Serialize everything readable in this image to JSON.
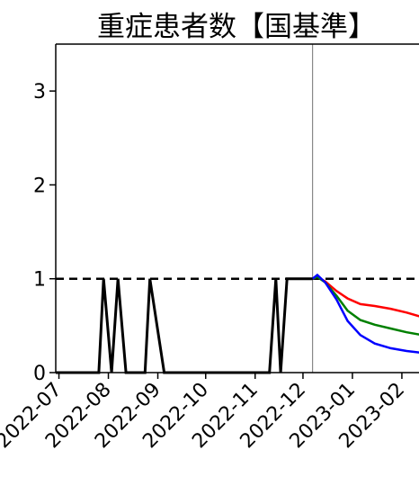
{
  "chart_data": {
    "type": "line",
    "title": "重症患者数【国基準】",
    "xlabel": "",
    "ylabel": "",
    "ylim": [
      0,
      3.5
    ],
    "yticks": [
      0,
      1,
      2,
      3
    ],
    "xlim": [
      "2022-06-29",
      "2023-02-14"
    ],
    "xtick_labels": [
      "2022-07",
      "2022-08",
      "2022-09",
      "2022-10",
      "2022-11",
      "2022-12",
      "2023-01",
      "2023-02"
    ],
    "xtick_dates": [
      "2022-07-01",
      "2022-08-01",
      "2022-09-01",
      "2022-10-01",
      "2022-11-01",
      "2022-12-01",
      "2023-01-01",
      "2023-02-01"
    ],
    "grid": false,
    "reference_line": {
      "y": 1,
      "style": "dashed",
      "color": "#000000"
    },
    "vertical_line": {
      "x": "2022-12-07",
      "color": "#888888"
    },
    "series": [
      {
        "color": "#000000",
        "x": [
          "2022-06-29",
          "2022-07-10",
          "2022-07-17",
          "2022-07-26",
          "2022-07-29",
          "2022-08-03",
          "2022-08-07",
          "2022-08-12",
          "2022-08-19",
          "2022-08-24",
          "2022-08-27",
          "2022-09-05",
          "2022-09-15",
          "2022-09-30",
          "2022-10-15",
          "2022-10-30",
          "2022-11-07",
          "2022-11-10",
          "2022-11-14",
          "2022-11-17",
          "2022-11-21",
          "2022-11-23",
          "2022-11-26",
          "2022-12-01",
          "2022-12-07"
        ],
        "values": [
          0,
          0,
          0,
          0,
          1,
          0,
          1,
          0,
          0,
          0,
          1,
          0,
          0,
          0,
          0,
          0,
          0,
          0,
          1,
          0,
          1,
          1,
          1,
          1,
          1
        ]
      },
      {
        "color": "#ff0000",
        "x": [
          "2022-12-07",
          "2022-12-10",
          "2022-12-15",
          "2022-12-22",
          "2022-12-29",
          "2023-01-06",
          "2023-01-15",
          "2023-01-25",
          "2023-02-04",
          "2023-02-14"
        ],
        "values": [
          1.0,
          1.02,
          0.97,
          0.87,
          0.79,
          0.73,
          0.71,
          0.68,
          0.64,
          0.59
        ]
      },
      {
        "color": "#008000",
        "x": [
          "2022-12-07",
          "2022-12-10",
          "2022-12-15",
          "2022-12-22",
          "2022-12-29",
          "2023-01-06",
          "2023-01-15",
          "2023-01-25",
          "2023-02-04",
          "2023-02-14"
        ],
        "values": [
          1.0,
          1.02,
          0.96,
          0.82,
          0.66,
          0.56,
          0.51,
          0.47,
          0.43,
          0.4
        ]
      },
      {
        "color": "#0000ff",
        "x": [
          "2022-12-07",
          "2022-12-10",
          "2022-12-15",
          "2022-12-22",
          "2022-12-29",
          "2023-01-06",
          "2023-01-15",
          "2023-01-25",
          "2023-02-04",
          "2023-02-14"
        ],
        "values": [
          1.0,
          1.04,
          0.96,
          0.78,
          0.55,
          0.4,
          0.31,
          0.26,
          0.23,
          0.21
        ]
      }
    ]
  }
}
